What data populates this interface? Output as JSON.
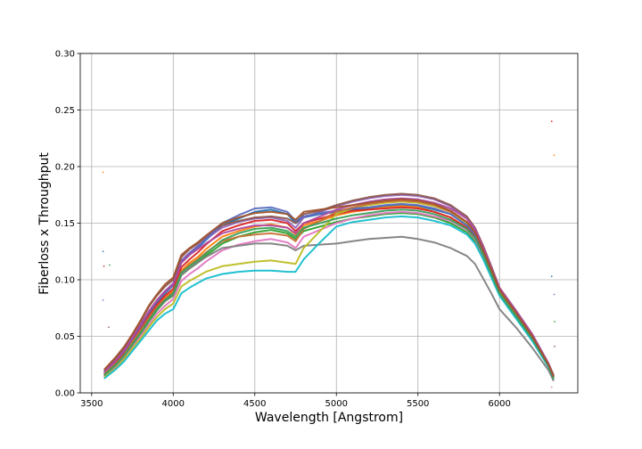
{
  "chart_data": {
    "type": "line",
    "title": "",
    "xlabel": "Wavelength [Angstrom]",
    "ylabel": "Fiberloss x Throughput",
    "xlim": [
      3430,
      6480
    ],
    "ylim": [
      0.0,
      0.3
    ],
    "xticks": [
      3500,
      4000,
      4500,
      5000,
      5500,
      6000
    ],
    "yticks": [
      0.0,
      0.05,
      0.1,
      0.15,
      0.2,
      0.25,
      0.3
    ],
    "xtick_labels": [
      "3500",
      "4000",
      "4500",
      "5000",
      "5500",
      "6000"
    ],
    "ytick_labels": [
      "0.00",
      "0.05",
      "0.10",
      "0.15",
      "0.20",
      "0.25",
      "0.30"
    ],
    "grid": true,
    "legend": "none",
    "x": [
      3580,
      3650,
      3700,
      3750,
      3800,
      3850,
      3900,
      3950,
      4000,
      4050,
      4100,
      4150,
      4200,
      4300,
      4400,
      4500,
      4600,
      4700,
      4750,
      4800,
      4900,
      5000,
      5100,
      5200,
      5300,
      5400,
      5500,
      5600,
      5700,
      5800,
      5850,
      5900,
      5950,
      6000,
      6050,
      6100,
      6200,
      6300,
      6330
    ],
    "series": [
      {
        "color": "#1f77b4",
        "values": [
          0.018,
          0.028,
          0.036,
          0.047,
          0.058,
          0.07,
          0.08,
          0.088,
          0.095,
          0.115,
          0.122,
          0.128,
          0.135,
          0.148,
          0.154,
          0.16,
          0.162,
          0.158,
          0.15,
          0.155,
          0.158,
          0.16,
          0.162,
          0.163,
          0.165,
          0.166,
          0.165,
          0.162,
          0.158,
          0.148,
          0.14,
          0.125,
          0.108,
          0.09,
          0.08,
          0.07,
          0.05,
          0.025,
          0.015
        ]
      },
      {
        "color": "#ff7f0e",
        "values": [
          0.016,
          0.026,
          0.034,
          0.044,
          0.054,
          0.066,
          0.076,
          0.084,
          0.09,
          0.108,
          0.115,
          0.12,
          0.127,
          0.138,
          0.143,
          0.147,
          0.149,
          0.146,
          0.14,
          0.148,
          0.152,
          0.157,
          0.16,
          0.162,
          0.164,
          0.165,
          0.164,
          0.16,
          0.155,
          0.146,
          0.138,
          0.123,
          0.106,
          0.088,
          0.078,
          0.068,
          0.048,
          0.024,
          0.014
        ]
      },
      {
        "color": "#2ca02c",
        "values": [
          0.015,
          0.024,
          0.032,
          0.042,
          0.052,
          0.063,
          0.073,
          0.081,
          0.086,
          0.104,
          0.11,
          0.115,
          0.121,
          0.132,
          0.138,
          0.142,
          0.144,
          0.141,
          0.136,
          0.143,
          0.147,
          0.151,
          0.154,
          0.156,
          0.158,
          0.159,
          0.158,
          0.155,
          0.15,
          0.142,
          0.134,
          0.12,
          0.104,
          0.087,
          0.077,
          0.067,
          0.047,
          0.023,
          0.013
        ]
      },
      {
        "color": "#d62728",
        "values": [
          0.017,
          0.027,
          0.035,
          0.046,
          0.057,
          0.068,
          0.078,
          0.086,
          0.092,
          0.111,
          0.118,
          0.124,
          0.131,
          0.143,
          0.148,
          0.152,
          0.153,
          0.15,
          0.143,
          0.15,
          0.154,
          0.158,
          0.161,
          0.162,
          0.163,
          0.164,
          0.163,
          0.16,
          0.155,
          0.146,
          0.138,
          0.123,
          0.106,
          0.089,
          0.079,
          0.069,
          0.049,
          0.024,
          0.014
        ]
      },
      {
        "color": "#9467bd",
        "values": [
          0.019,
          0.03,
          0.038,
          0.049,
          0.06,
          0.072,
          0.082,
          0.09,
          0.097,
          0.117,
          0.124,
          0.13,
          0.136,
          0.146,
          0.151,
          0.154,
          0.155,
          0.152,
          0.146,
          0.155,
          0.16,
          0.165,
          0.169,
          0.172,
          0.174,
          0.175,
          0.174,
          0.171,
          0.165,
          0.154,
          0.144,
          0.128,
          0.11,
          0.092,
          0.082,
          0.072,
          0.051,
          0.026,
          0.016
        ]
      },
      {
        "color": "#8c564b",
        "values": [
          0.02,
          0.031,
          0.04,
          0.051,
          0.063,
          0.076,
          0.086,
          0.094,
          0.1,
          0.12,
          0.127,
          0.132,
          0.138,
          0.148,
          0.152,
          0.155,
          0.156,
          0.154,
          0.15,
          0.158,
          0.161,
          0.166,
          0.17,
          0.173,
          0.175,
          0.176,
          0.175,
          0.172,
          0.166,
          0.156,
          0.146,
          0.13,
          0.112,
          0.093,
          0.083,
          0.073,
          0.052,
          0.026,
          0.016
        ]
      },
      {
        "color": "#e377c2",
        "values": [
          0.015,
          0.023,
          0.031,
          0.04,
          0.05,
          0.06,
          0.07,
          0.077,
          0.083,
          0.099,
          0.105,
          0.11,
          0.116,
          0.126,
          0.131,
          0.134,
          0.136,
          0.133,
          0.128,
          0.138,
          0.144,
          0.15,
          0.154,
          0.157,
          0.159,
          0.16,
          0.159,
          0.156,
          0.152,
          0.144,
          0.136,
          0.121,
          0.105,
          0.088,
          0.078,
          0.068,
          0.048,
          0.024,
          0.014
        ]
      },
      {
        "color": "#7f7f7f",
        "values": [
          0.016,
          0.025,
          0.033,
          0.043,
          0.053,
          0.064,
          0.074,
          0.081,
          0.087,
          0.104,
          0.11,
          0.115,
          0.12,
          0.128,
          0.13,
          0.132,
          0.132,
          0.13,
          0.126,
          0.13,
          0.131,
          0.132,
          0.134,
          0.136,
          0.137,
          0.138,
          0.136,
          0.133,
          0.128,
          0.121,
          0.114,
          0.101,
          0.088,
          0.074,
          0.066,
          0.058,
          0.04,
          0.02,
          0.011
        ]
      },
      {
        "color": "#bcbd22",
        "values": [
          0.014,
          0.022,
          0.03,
          0.039,
          0.048,
          0.058,
          0.067,
          0.074,
          0.079,
          0.094,
          0.099,
          0.103,
          0.107,
          0.112,
          0.114,
          0.116,
          0.117,
          0.115,
          0.114,
          0.128,
          0.143,
          0.158,
          0.163,
          0.166,
          0.168,
          0.169,
          0.168,
          0.165,
          0.16,
          0.15,
          0.141,
          0.125,
          0.108,
          0.09,
          0.08,
          0.07,
          0.049,
          0.024,
          0.014
        ]
      },
      {
        "color": "#17becf",
        "values": [
          0.013,
          0.021,
          0.028,
          0.037,
          0.046,
          0.055,
          0.064,
          0.07,
          0.074,
          0.088,
          0.093,
          0.097,
          0.101,
          0.105,
          0.107,
          0.108,
          0.108,
          0.107,
          0.107,
          0.118,
          0.133,
          0.147,
          0.151,
          0.153,
          0.155,
          0.156,
          0.155,
          0.152,
          0.148,
          0.14,
          0.132,
          0.118,
          0.102,
          0.086,
          0.076,
          0.066,
          0.046,
          0.023,
          0.013
        ]
      },
      {
        "color": "#5b6abf",
        "values": [
          0.018,
          0.029,
          0.037,
          0.048,
          0.059,
          0.071,
          0.081,
          0.089,
          0.096,
          0.116,
          0.123,
          0.129,
          0.136,
          0.15,
          0.157,
          0.163,
          0.164,
          0.16,
          0.152,
          0.156,
          0.159,
          0.161,
          0.163,
          0.164,
          0.166,
          0.167,
          0.166,
          0.163,
          0.158,
          0.148,
          0.14,
          0.125,
          0.108,
          0.091,
          0.081,
          0.071,
          0.05,
          0.025,
          0.015
        ]
      },
      {
        "color": "#c87137",
        "values": [
          0.017,
          0.026,
          0.034,
          0.045,
          0.055,
          0.066,
          0.076,
          0.083,
          0.089,
          0.107,
          0.113,
          0.118,
          0.124,
          0.134,
          0.138,
          0.14,
          0.141,
          0.139,
          0.134,
          0.145,
          0.152,
          0.16,
          0.164,
          0.167,
          0.169,
          0.17,
          0.169,
          0.166,
          0.16,
          0.151,
          0.142,
          0.126,
          0.109,
          0.091,
          0.081,
          0.071,
          0.05,
          0.025,
          0.015
        ]
      },
      {
        "color": "#3a9e5a",
        "values": [
          0.016,
          0.025,
          0.033,
          0.043,
          0.053,
          0.064,
          0.074,
          0.082,
          0.088,
          0.106,
          0.112,
          0.117,
          0.123,
          0.135,
          0.141,
          0.145,
          0.146,
          0.143,
          0.138,
          0.146,
          0.15,
          0.154,
          0.157,
          0.159,
          0.161,
          0.162,
          0.161,
          0.158,
          0.153,
          0.145,
          0.137,
          0.122,
          0.105,
          0.088,
          0.078,
          0.068,
          0.048,
          0.024,
          0.013
        ]
      },
      {
        "color": "#b04aa0",
        "values": [
          0.019,
          0.029,
          0.038,
          0.049,
          0.06,
          0.072,
          0.082,
          0.09,
          0.096,
          0.115,
          0.122,
          0.127,
          0.132,
          0.141,
          0.145,
          0.148,
          0.148,
          0.146,
          0.141,
          0.15,
          0.156,
          0.162,
          0.166,
          0.169,
          0.171,
          0.172,
          0.171,
          0.168,
          0.163,
          0.154,
          0.145,
          0.129,
          0.111,
          0.093,
          0.083,
          0.073,
          0.052,
          0.026,
          0.015
        ]
      },
      {
        "color": "#a0522d",
        "values": [
          0.021,
          0.032,
          0.041,
          0.052,
          0.064,
          0.077,
          0.087,
          0.096,
          0.102,
          0.122,
          0.128,
          0.133,
          0.139,
          0.15,
          0.155,
          0.159,
          0.16,
          0.158,
          0.153,
          0.16,
          0.162,
          0.164,
          0.166,
          0.168,
          0.17,
          0.171,
          0.17,
          0.167,
          0.161,
          0.151,
          0.142,
          0.126,
          0.109,
          0.091,
          0.081,
          0.071,
          0.05,
          0.025,
          0.015
        ]
      }
    ],
    "outliers": [
      {
        "x": 3570,
        "y": 0.195,
        "color": "#ff7f0e"
      },
      {
        "x": 3570,
        "y": 0.125,
        "color": "#1f77b4"
      },
      {
        "x": 3575,
        "y": 0.112,
        "color": "#d62728"
      },
      {
        "x": 3610,
        "y": 0.113,
        "color": "#2ca02c"
      },
      {
        "x": 3570,
        "y": 0.082,
        "color": "#9467bd"
      },
      {
        "x": 3605,
        "y": 0.058,
        "color": "#8c564b"
      },
      {
        "x": 6320,
        "y": 0.24,
        "color": "#d62728"
      },
      {
        "x": 6335,
        "y": 0.21,
        "color": "#ff7f0e"
      },
      {
        "x": 6320,
        "y": 0.103,
        "color": "#1f77b4"
      },
      {
        "x": 6335,
        "y": 0.087,
        "color": "#9467bd"
      },
      {
        "x": 6338,
        "y": 0.063,
        "color": "#2ca02c"
      },
      {
        "x": 6338,
        "y": 0.041,
        "color": "#8c564b"
      },
      {
        "x": 6320,
        "y": 0.005,
        "color": "#e377c2"
      }
    ]
  }
}
